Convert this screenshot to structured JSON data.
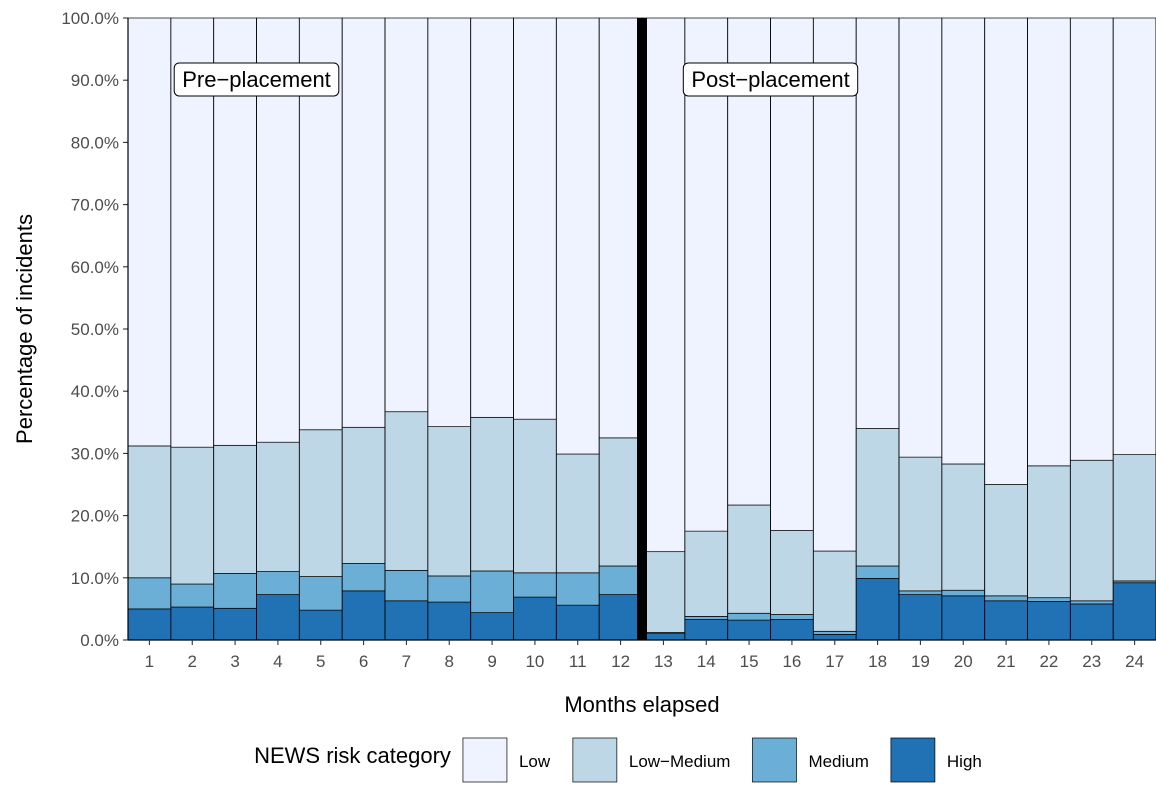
{
  "chart_data": {
    "type": "bar",
    "stacked": true,
    "xlabel": "Months elapsed",
    "ylabel": "Percentage of incidents",
    "ylim": [
      0,
      100
    ],
    "y_ticks": [
      "0.0%",
      "10.0%",
      "20.0%",
      "30.0%",
      "40.0%",
      "50.0%",
      "60.0%",
      "70.0%",
      "80.0%",
      "90.0%",
      "100.0%"
    ],
    "categories": [
      "1",
      "2",
      "3",
      "4",
      "5",
      "6",
      "7",
      "8",
      "9",
      "10",
      "11",
      "12",
      "13",
      "14",
      "15",
      "16",
      "17",
      "18",
      "19",
      "20",
      "21",
      "22",
      "23",
      "24"
    ],
    "legend": {
      "title": "NEWS risk category",
      "position": "bottom"
    },
    "series": [
      {
        "name": "High",
        "color": "#2171b5",
        "values": [
          5.0,
          5.3,
          5.1,
          7.3,
          4.8,
          7.9,
          6.3,
          6.1,
          4.4,
          6.9,
          5.6,
          7.3,
          1.1,
          3.3,
          3.2,
          3.3,
          0.9,
          9.9,
          7.3,
          7.1,
          6.3,
          6.2,
          5.8,
          9.2
        ]
      },
      {
        "name": "Medium",
        "color": "#6baed6",
        "values": [
          5.0,
          3.7,
          5.6,
          3.7,
          5.4,
          4.4,
          4.9,
          4.2,
          6.7,
          3.9,
          5.2,
          4.6,
          0.1,
          0.5,
          1.1,
          0.8,
          0.5,
          2.0,
          0.6,
          0.9,
          0.8,
          0.6,
          0.5,
          0.3
        ]
      },
      {
        "name": "Low−Medium",
        "color": "#bdd7e7",
        "values": [
          21.2,
          22.0,
          20.6,
          20.8,
          23.6,
          21.9,
          25.5,
          24.0,
          24.7,
          24.7,
          19.1,
          20.6,
          13.0,
          13.7,
          17.4,
          13.5,
          12.9,
          22.1,
          21.5,
          20.3,
          17.9,
          21.2,
          22.6,
          20.3
        ]
      },
      {
        "name": "Low",
        "color": "#eff3ff",
        "values": [
          68.8,
          69.0,
          68.7,
          68.2,
          66.2,
          65.8,
          63.3,
          65.7,
          64.2,
          64.5,
          70.1,
          67.5,
          85.8,
          82.5,
          78.3,
          82.4,
          85.7,
          66.0,
          70.6,
          71.7,
          75.0,
          72.0,
          71.1,
          70.2
        ]
      }
    ],
    "legend_order": [
      "Low",
      "Low−Medium",
      "Medium",
      "High"
    ],
    "divider_after_category": "12",
    "annotations": [
      {
        "text": "Pre−placement",
        "x": "3.5",
        "y": 90.2
      },
      {
        "text": "Post−placement",
        "x": "15.5",
        "y": 90.2
      }
    ]
  }
}
